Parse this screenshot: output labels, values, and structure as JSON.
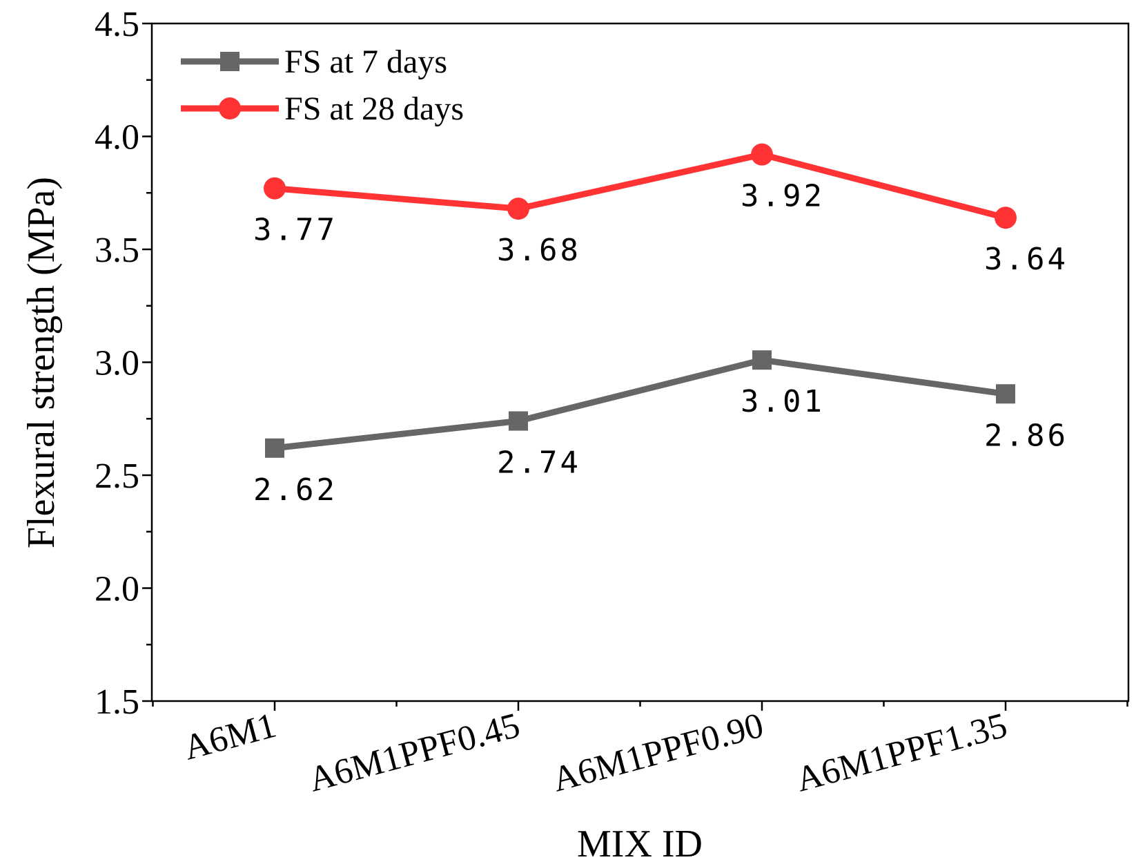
{
  "chart_data": {
    "type": "line",
    "categories": [
      "A6M1",
      "A6M1PPF0.45",
      "A6M1PPF0.90",
      "A6M1PPF1.35"
    ],
    "series": [
      {
        "name": "FS at 7 days",
        "values": [
          2.62,
          2.74,
          3.01,
          2.86
        ],
        "labels": [
          "2.62",
          "2.74",
          "3.01",
          "2.86"
        ],
        "color": "#666666",
        "marker": "square"
      },
      {
        "name": "FS at 28 days",
        "values": [
          3.77,
          3.68,
          3.92,
          3.64
        ],
        "labels": [
          "3.77",
          "3.68",
          "3.92",
          "3.64"
        ],
        "color": "#ff3333",
        "marker": "circle"
      }
    ],
    "xlabel": "MIX ID",
    "ylabel": "Flexural strength (MPa)",
    "ylim": [
      1.5,
      4.5
    ],
    "yticks": [
      "1.5",
      "2.0",
      "2.5",
      "3.0",
      "3.5",
      "4.0",
      "4.5"
    ],
    "grid": false,
    "legend_position": "top-left"
  }
}
